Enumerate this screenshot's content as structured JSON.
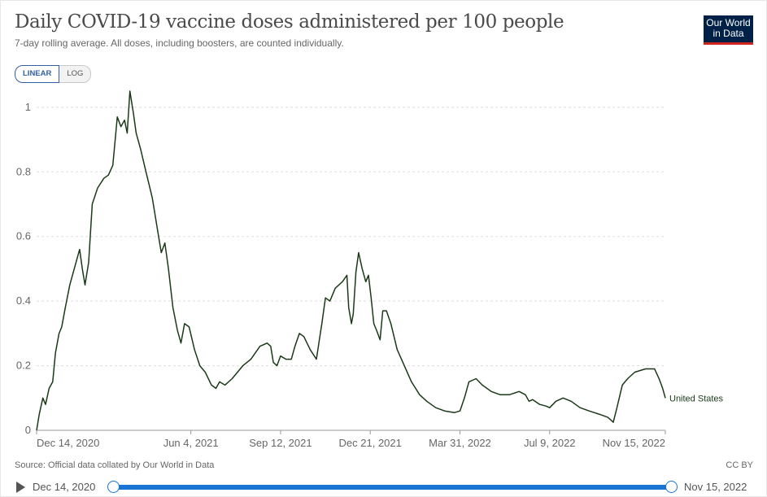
{
  "header": {
    "title": "Daily COVID-19 vaccine doses administered per 100 people",
    "subtitle": "7-day rolling average. All doses, including boosters, are counted individually.",
    "logo_line1": "Our World",
    "logo_line2": "in Data"
  },
  "scale_toggle": {
    "linear_label": "LINEAR",
    "log_label": "LOG",
    "selected": "linear"
  },
  "footer": {
    "source": "Source: Official data collated by Our World in Data",
    "license": "CC BY"
  },
  "timeline": {
    "start_label": "Dec 14, 2020",
    "end_label": "Nov 15, 2022"
  },
  "colors": {
    "series": "#1a3a17",
    "grid": "#dddddd",
    "accent": "#1a74d2",
    "logo_bg": "#002147",
    "logo_bar": "#ce261e"
  },
  "chart_data": {
    "type": "line",
    "title": "Daily COVID-19 vaccine doses administered per 100 people",
    "xlabel": "",
    "ylabel": "",
    "x_ticks": [
      "Dec 14, 2020",
      "Jun 4, 2021",
      "Sep 12, 2021",
      "Dec 21, 2021",
      "Mar 31, 2022",
      "Jul 9, 2022",
      "Nov 15, 2022"
    ],
    "y_ticks": [
      0,
      0.2,
      0.4,
      0.6,
      0.8,
      1
    ],
    "ylim": [
      0,
      1.05
    ],
    "xlim": [
      "2020-12-14",
      "2022-11-15"
    ],
    "grid": true,
    "legend": "line-end label",
    "series": [
      {
        "name": "United States",
        "points": [
          [
            "2020-12-14",
            0.0
          ],
          [
            "2020-12-17",
            0.05
          ],
          [
            "2020-12-21",
            0.1
          ],
          [
            "2020-12-24",
            0.08
          ],
          [
            "2020-12-28",
            0.13
          ],
          [
            "2021-01-01",
            0.15
          ],
          [
            "2021-01-04",
            0.24
          ],
          [
            "2021-01-08",
            0.3
          ],
          [
            "2021-01-11",
            0.32
          ],
          [
            "2021-01-15",
            0.38
          ],
          [
            "2021-01-20",
            0.45
          ],
          [
            "2021-01-25",
            0.5
          ],
          [
            "2021-01-31",
            0.56
          ],
          [
            "2021-02-03",
            0.5
          ],
          [
            "2021-02-06",
            0.45
          ],
          [
            "2021-02-10",
            0.52
          ],
          [
            "2021-02-14",
            0.7
          ],
          [
            "2021-02-20",
            0.75
          ],
          [
            "2021-02-27",
            0.78
          ],
          [
            "2021-03-04",
            0.79
          ],
          [
            "2021-03-09",
            0.82
          ],
          [
            "2021-03-14",
            0.97
          ],
          [
            "2021-03-18",
            0.94
          ],
          [
            "2021-03-22",
            0.96
          ],
          [
            "2021-03-25",
            0.92
          ],
          [
            "2021-03-28",
            1.05
          ],
          [
            "2021-04-01",
            0.98
          ],
          [
            "2021-04-04",
            0.92
          ],
          [
            "2021-04-09",
            0.87
          ],
          [
            "2021-04-15",
            0.8
          ],
          [
            "2021-04-22",
            0.72
          ],
          [
            "2021-04-29",
            0.6
          ],
          [
            "2021-05-02",
            0.55
          ],
          [
            "2021-05-06",
            0.58
          ],
          [
            "2021-05-10",
            0.5
          ],
          [
            "2021-05-15",
            0.38
          ],
          [
            "2021-05-20",
            0.31
          ],
          [
            "2021-05-24",
            0.27
          ],
          [
            "2021-05-28",
            0.33
          ],
          [
            "2021-06-02",
            0.32
          ],
          [
            "2021-06-08",
            0.25
          ],
          [
            "2021-06-14",
            0.2
          ],
          [
            "2021-06-20",
            0.18
          ],
          [
            "2021-06-27",
            0.14
          ],
          [
            "2021-07-02",
            0.13
          ],
          [
            "2021-07-06",
            0.15
          ],
          [
            "2021-07-12",
            0.14
          ],
          [
            "2021-07-20",
            0.16
          ],
          [
            "2021-08-01",
            0.2
          ],
          [
            "2021-08-10",
            0.22
          ],
          [
            "2021-08-20",
            0.26
          ],
          [
            "2021-08-28",
            0.27
          ],
          [
            "2021-09-01",
            0.26
          ],
          [
            "2021-09-04",
            0.21
          ],
          [
            "2021-09-08",
            0.2
          ],
          [
            "2021-09-12",
            0.23
          ],
          [
            "2021-09-18",
            0.22
          ],
          [
            "2021-09-24",
            0.22
          ],
          [
            "2021-09-28",
            0.26
          ],
          [
            "2021-10-03",
            0.3
          ],
          [
            "2021-10-08",
            0.29
          ],
          [
            "2021-10-15",
            0.25
          ],
          [
            "2021-10-22",
            0.22
          ],
          [
            "2021-10-28",
            0.33
          ],
          [
            "2021-11-01",
            0.41
          ],
          [
            "2021-11-06",
            0.4
          ],
          [
            "2021-11-12",
            0.44
          ],
          [
            "2021-11-20",
            0.46
          ],
          [
            "2021-11-25",
            0.48
          ],
          [
            "2021-11-27",
            0.38
          ],
          [
            "2021-11-30",
            0.33
          ],
          [
            "2021-12-02",
            0.36
          ],
          [
            "2021-12-05",
            0.49
          ],
          [
            "2021-12-08",
            0.55
          ],
          [
            "2021-12-12",
            0.5
          ],
          [
            "2021-12-16",
            0.46
          ],
          [
            "2021-12-19",
            0.48
          ],
          [
            "2021-12-22",
            0.41
          ],
          [
            "2021-12-25",
            0.33
          ],
          [
            "2021-12-28",
            0.31
          ],
          [
            "2022-01-01",
            0.28
          ],
          [
            "2022-01-04",
            0.37
          ],
          [
            "2022-01-08",
            0.37
          ],
          [
            "2022-01-13",
            0.33
          ],
          [
            "2022-01-20",
            0.25
          ],
          [
            "2022-01-28",
            0.2
          ],
          [
            "2022-02-05",
            0.15
          ],
          [
            "2022-02-14",
            0.11
          ],
          [
            "2022-02-22",
            0.09
          ],
          [
            "2022-03-04",
            0.07
          ],
          [
            "2022-03-14",
            0.06
          ],
          [
            "2022-03-25",
            0.055
          ],
          [
            "2022-03-31",
            0.06
          ],
          [
            "2022-04-05",
            0.1
          ],
          [
            "2022-04-10",
            0.15
          ],
          [
            "2022-04-18",
            0.16
          ],
          [
            "2022-04-25",
            0.14
          ],
          [
            "2022-05-05",
            0.12
          ],
          [
            "2022-05-15",
            0.11
          ],
          [
            "2022-05-25",
            0.11
          ],
          [
            "2022-06-05",
            0.12
          ],
          [
            "2022-06-12",
            0.11
          ],
          [
            "2022-06-16",
            0.09
          ],
          [
            "2022-06-20",
            0.095
          ],
          [
            "2022-06-28",
            0.08
          ],
          [
            "2022-07-05",
            0.075
          ],
          [
            "2022-07-09",
            0.07
          ],
          [
            "2022-07-16",
            0.09
          ],
          [
            "2022-07-24",
            0.1
          ],
          [
            "2022-08-02",
            0.09
          ],
          [
            "2022-08-12",
            0.07
          ],
          [
            "2022-08-22",
            0.06
          ],
          [
            "2022-09-02",
            0.05
          ],
          [
            "2022-09-12",
            0.04
          ],
          [
            "2022-09-18",
            0.025
          ],
          [
            "2022-09-22",
            0.07
          ],
          [
            "2022-09-28",
            0.14
          ],
          [
            "2022-10-04",
            0.16
          ],
          [
            "2022-10-12",
            0.18
          ],
          [
            "2022-10-24",
            0.19
          ],
          [
            "2022-11-03",
            0.19
          ],
          [
            "2022-11-08",
            0.16
          ],
          [
            "2022-11-12",
            0.13
          ],
          [
            "2022-11-15",
            0.1
          ]
        ]
      }
    ]
  }
}
